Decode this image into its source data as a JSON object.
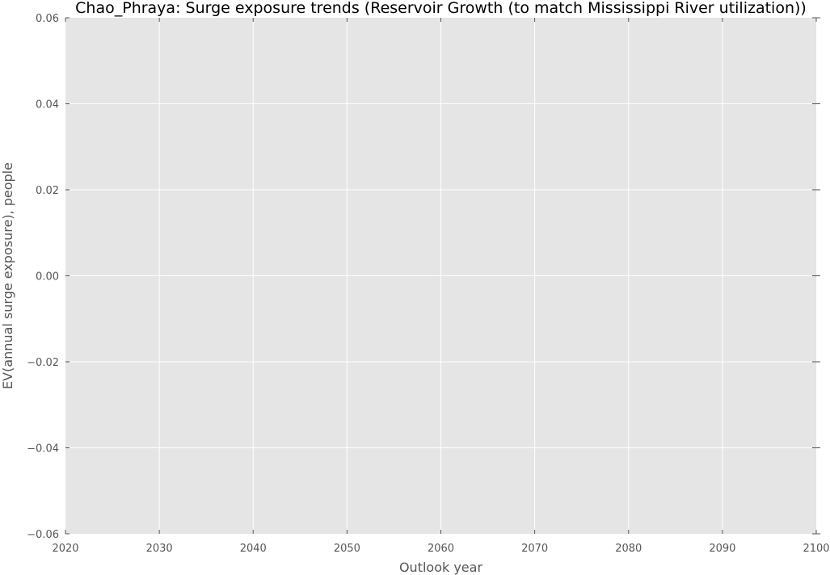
{
  "chart_data": {
    "type": "line",
    "title": "Chao_Phraya: Surge exposure trends (Reservoir Growth (to match Mississippi River utilization))",
    "xlabel": "Outlook year",
    "ylabel": "EV(annual surge exposure), people",
    "xlim": [
      2020,
      2100
    ],
    "ylim": [
      -0.06,
      0.06
    ],
    "x_ticks": [
      "2020",
      "2030",
      "2040",
      "2050",
      "2060",
      "2070",
      "2080",
      "2090",
      "2100"
    ],
    "y_ticks": [
      "0.06",
      "0.04",
      "0.02",
      "0.00",
      "−0.02",
      "−0.04",
      "−0.06"
    ],
    "grid": true,
    "series": [],
    "colors": {
      "plot_background": "#e5e5e5",
      "grid": "#ffffff",
      "text": "#555555"
    }
  }
}
